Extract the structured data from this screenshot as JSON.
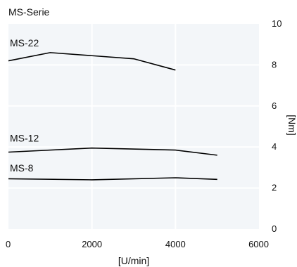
{
  "chart_data": {
    "type": "line",
    "title": "MS-Serie",
    "xlabel": "[U/min]",
    "ylabel": "[Nm]",
    "xlim": [
      0,
      6000
    ],
    "ylim": [
      0,
      10
    ],
    "x_ticks": [
      "0",
      "2000",
      "4000",
      "6000"
    ],
    "y_ticks": [
      "0",
      "2",
      "4",
      "6",
      "8",
      "10"
    ],
    "grid": true,
    "series": [
      {
        "name": "MS-22",
        "x": [
          0,
          1000,
          2000,
          3000,
          4000
        ],
        "y": [
          8.2,
          8.6,
          8.45,
          8.3,
          7.75
        ]
      },
      {
        "name": "MS-12",
        "x": [
          0,
          2000,
          4000,
          5000
        ],
        "y": [
          3.75,
          3.95,
          3.85,
          3.6
        ]
      },
      {
        "name": "MS-8",
        "x": [
          0,
          2000,
          4000,
          5000
        ],
        "y": [
          2.45,
          2.4,
          2.5,
          2.42
        ]
      }
    ],
    "colors": {
      "plot_background": "#f3f6f9",
      "grid": "#ffffff",
      "line": "#000000"
    }
  }
}
